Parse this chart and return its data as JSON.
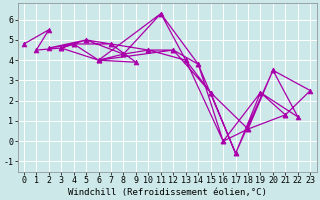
{
  "xlabel": "Windchill (Refroidissement éolien,°C)",
  "x_data": [
    0,
    2,
    1,
    3,
    4,
    2,
    5,
    3,
    6,
    4,
    7,
    5,
    8,
    6,
    9,
    7,
    10,
    8,
    11,
    6,
    12,
    10,
    13,
    11,
    14,
    12,
    15,
    13,
    16,
    14,
    17,
    15,
    18,
    16,
    19,
    17,
    20,
    18,
    21,
    19,
    22,
    20,
    23,
    21
  ],
  "y_data": [
    4.8,
    5.5,
    4.5,
    4.6,
    4.8,
    4.6,
    5.0,
    4.6,
    4.0,
    4.8,
    4.8,
    5.0,
    4.3,
    4.0,
    3.9,
    4.8,
    4.5,
    4.3,
    6.3,
    4.0,
    4.5,
    4.5,
    4.0,
    6.3,
    3.8,
    4.5,
    2.4,
    4.0,
    0.0,
    3.8,
    -0.6,
    2.4,
    0.6,
    0.0,
    2.4,
    -0.6,
    3.5,
    0.6,
    1.3,
    2.4,
    1.2,
    3.5,
    2.5,
    1.3
  ],
  "line_color": "#aa00aa",
  "marker": "^",
  "background_color": "#cce8e8",
  "grid_color": "#ffffff",
  "ylim": [
    -1.5,
    6.8
  ],
  "xlim": [
    -0.5,
    23.5
  ],
  "yticks": [
    -1,
    0,
    1,
    2,
    3,
    4,
    5,
    6
  ],
  "xticks": [
    0,
    1,
    2,
    3,
    4,
    5,
    6,
    7,
    8,
    9,
    10,
    11,
    12,
    13,
    14,
    15,
    16,
    17,
    18,
    19,
    20,
    21,
    22,
    23
  ],
  "tick_fontsize": 6.0,
  "xlabel_fontsize": 6.5,
  "markersize": 3.5,
  "linewidth": 0.9
}
